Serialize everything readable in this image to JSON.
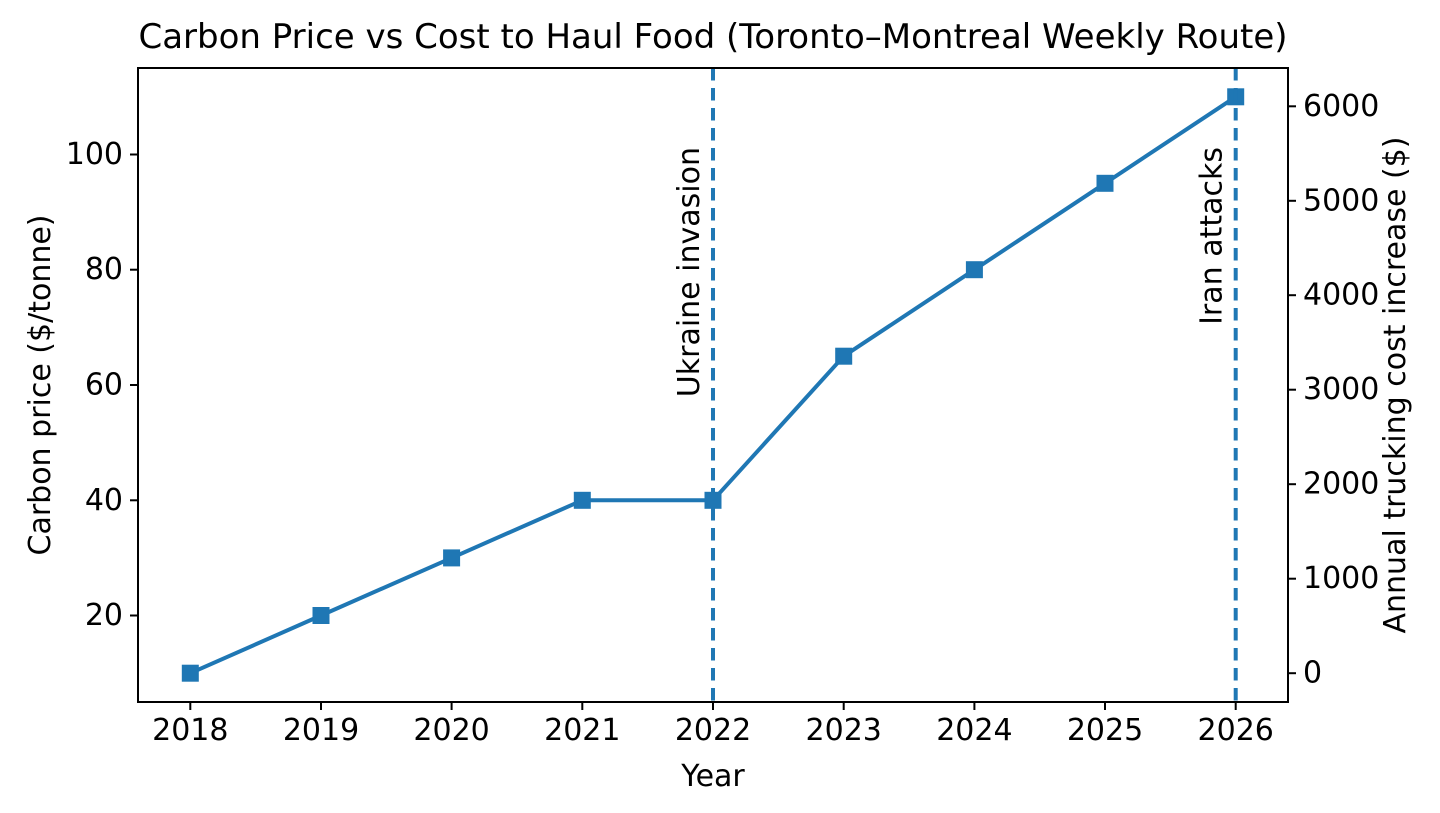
{
  "figure": {
    "background": "#ffffff",
    "text_color": "#000000"
  },
  "chart_data": {
    "type": "line",
    "title": "Carbon Price vs Cost to Haul Food (Toronto–Montreal Weekly Route)",
    "xlabel": "Year",
    "ylabel_left": "Carbon price ($/tonne)",
    "ylabel_right": "Annual trucking cost increase ($)",
    "x": [
      2018,
      2019,
      2020,
      2021,
      2022,
      2023,
      2024,
      2025,
      2026
    ],
    "series": [
      {
        "name": "Carbon price ($/tonne)",
        "axis": "left",
        "values": [
          10,
          20,
          30,
          40,
          40,
          65,
          80,
          95,
          110
        ],
        "color": "#1f77b4",
        "marker": "square",
        "linestyle": "solid"
      }
    ],
    "xticks": [
      2018,
      2019,
      2020,
      2021,
      2022,
      2023,
      2024,
      2025,
      2026
    ],
    "yticks_left": [
      20,
      40,
      60,
      80,
      100
    ],
    "yticks_right": [
      0,
      1000,
      2000,
      3000,
      4000,
      5000,
      6000
    ],
    "xlim": [
      2017.6,
      2026.4
    ],
    "ylim_left": [
      5,
      115
    ],
    "ylim_right": [
      -305,
      6405
    ],
    "grid": false,
    "legend": "none",
    "annotations": [
      {
        "x": 2022,
        "label": "Ukraine invasion",
        "linestyle": "dashed",
        "color": "#1f77b4"
      },
      {
        "x": 2026,
        "label": "Iran attacks",
        "linestyle": "dashed",
        "color": "#1f77b4"
      }
    ]
  }
}
